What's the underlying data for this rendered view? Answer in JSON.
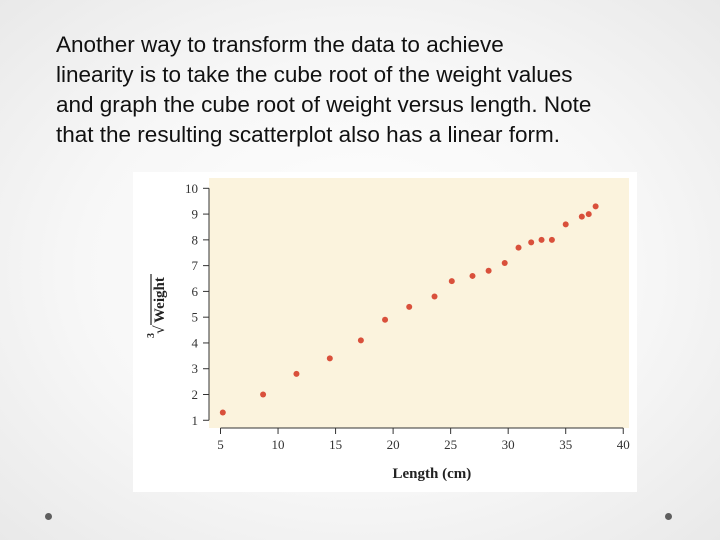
{
  "slide": {
    "lines": [
      "Another way to transform the data to achieve",
      "linearity is to take the cube root of the weight values",
      "and graph the cube root of weight versus length. Note",
      "that the resulting scatterplot also has a linear form."
    ]
  },
  "chart_data": {
    "type": "scatter",
    "title": "",
    "xlabel": "Length (cm)",
    "ylabel_index": "3",
    "ylabel": "Weight",
    "xlim": [
      4,
      40.5
    ],
    "ylim": [
      0.7,
      10.4
    ],
    "xticks": [
      5,
      10,
      15,
      20,
      25,
      30,
      35,
      40
    ],
    "yticks": [
      1,
      2,
      3,
      4,
      5,
      6,
      7,
      8,
      9,
      10
    ],
    "grid": false,
    "colors": {
      "plot_bg": "#fbf3dd",
      "point": "#d9503b",
      "axis": "#333333"
    },
    "points": [
      {
        "x": 5.2,
        "y": 1.3
      },
      {
        "x": 8.7,
        "y": 2.0
      },
      {
        "x": 11.6,
        "y": 2.8
      },
      {
        "x": 14.5,
        "y": 3.4
      },
      {
        "x": 17.2,
        "y": 4.1
      },
      {
        "x": 19.3,
        "y": 4.9
      },
      {
        "x": 21.4,
        "y": 5.4
      },
      {
        "x": 23.6,
        "y": 5.8
      },
      {
        "x": 25.1,
        "y": 6.4
      },
      {
        "x": 26.9,
        "y": 6.6
      },
      {
        "x": 28.3,
        "y": 6.8
      },
      {
        "x": 29.7,
        "y": 7.1
      },
      {
        "x": 30.9,
        "y": 7.7
      },
      {
        "x": 32.0,
        "y": 7.9
      },
      {
        "x": 32.9,
        "y": 8.0
      },
      {
        "x": 33.8,
        "y": 8.0
      },
      {
        "x": 35.0,
        "y": 8.6
      },
      {
        "x": 36.4,
        "y": 8.9
      },
      {
        "x": 37.0,
        "y": 9.0
      },
      {
        "x": 37.6,
        "y": 9.3
      }
    ]
  }
}
